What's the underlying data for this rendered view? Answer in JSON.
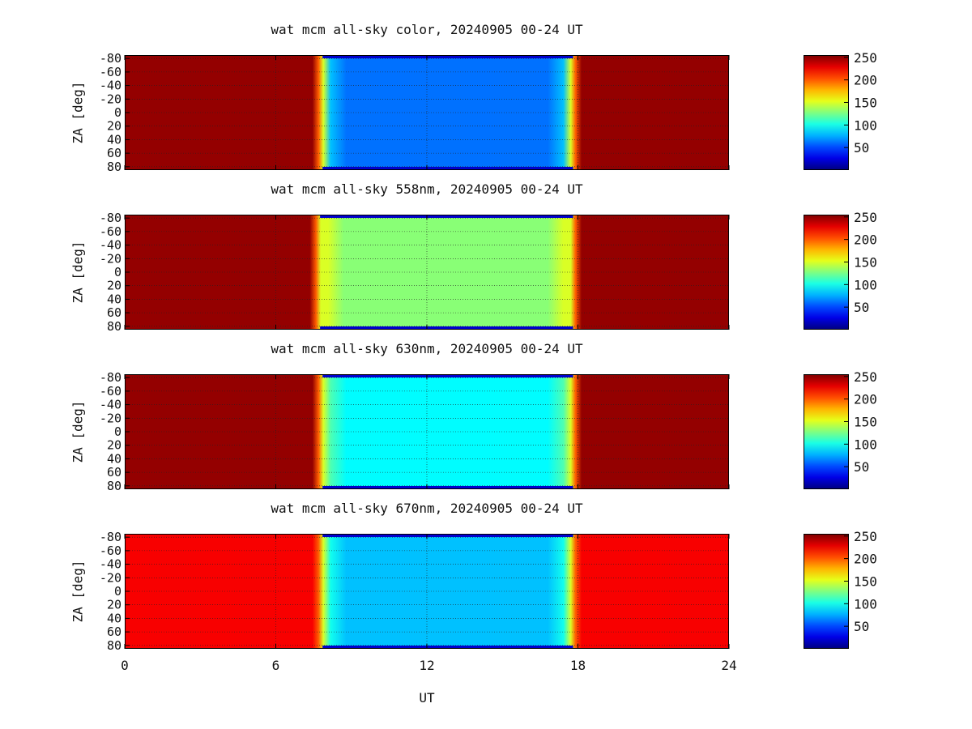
{
  "chart_data": [
    {
      "type": "heatmap",
      "title": "wat mcm all-sky color, 20240905 00-24 UT",
      "ylabel": "ZA [deg]",
      "yticks": [
        "-80",
        "-60",
        "-40",
        "-20",
        "0",
        "20",
        "40",
        "60",
        "80"
      ],
      "xlim": [
        0,
        24
      ],
      "ylim": [
        -85,
        85
      ],
      "grid": true,
      "colorbar": {
        "ticks": [
          "50",
          "100",
          "150",
          "200",
          "250"
        ],
        "range": [
          0,
          255
        ]
      },
      "background_value": 250,
      "sky_value": 60,
      "day_start_ut": 7.6,
      "day_end_ut": 18.0
    },
    {
      "type": "heatmap",
      "title": "wat mcm all-sky 558nm, 20240905 00-24 UT",
      "ylabel": "ZA [deg]",
      "yticks": [
        "-80",
        "-60",
        "-40",
        "-20",
        "0",
        "20",
        "40",
        "60",
        "80"
      ],
      "xlim": [
        0,
        24
      ],
      "ylim": [
        -85,
        85
      ],
      "grid": true,
      "colorbar": {
        "ticks": [
          "50",
          "100",
          "150",
          "200",
          "250"
        ],
        "range": [
          0,
          255
        ]
      },
      "background_value": 250,
      "sky_value": 130,
      "day_start_ut": 7.5,
      "day_end_ut": 18.0
    },
    {
      "type": "heatmap",
      "title": "wat mcm all-sky 630nm, 20240905 00-24 UT",
      "ylabel": "ZA [deg]",
      "yticks": [
        "-80",
        "-60",
        "-40",
        "-20",
        "0",
        "20",
        "40",
        "60",
        "80"
      ],
      "xlim": [
        0,
        24
      ],
      "ylim": [
        -85,
        85
      ],
      "grid": true,
      "colorbar": {
        "ticks": [
          "50",
          "100",
          "150",
          "200",
          "250"
        ],
        "range": [
          0,
          255
        ]
      },
      "background_value": 250,
      "sky_value": 95,
      "day_start_ut": 7.6,
      "day_end_ut": 18.0
    },
    {
      "type": "heatmap",
      "title": "wat mcm all-sky 670nm, 20240905 00-24 UT",
      "ylabel": "ZA [deg]",
      "yticks": [
        "-80",
        "-60",
        "-40",
        "-20",
        "0",
        "20",
        "40",
        "60",
        "80"
      ],
      "xlim": [
        0,
        24
      ],
      "ylim": [
        -85,
        85
      ],
      "grid": true,
      "colorbar": {
        "ticks": [
          "50",
          "100",
          "150",
          "200",
          "250"
        ],
        "range": [
          0,
          255
        ]
      },
      "background_value": 225,
      "sky_value": 80,
      "day_start_ut": 7.6,
      "day_end_ut": 18.0
    }
  ],
  "xaxis": {
    "label": "UT",
    "ticks": [
      "0",
      "6",
      "12",
      "18",
      "24"
    ],
    "tick_values": [
      0,
      6,
      12,
      18,
      24
    ]
  },
  "colors": {
    "jet_low": "#00008f",
    "jet_high": "#800000"
  }
}
